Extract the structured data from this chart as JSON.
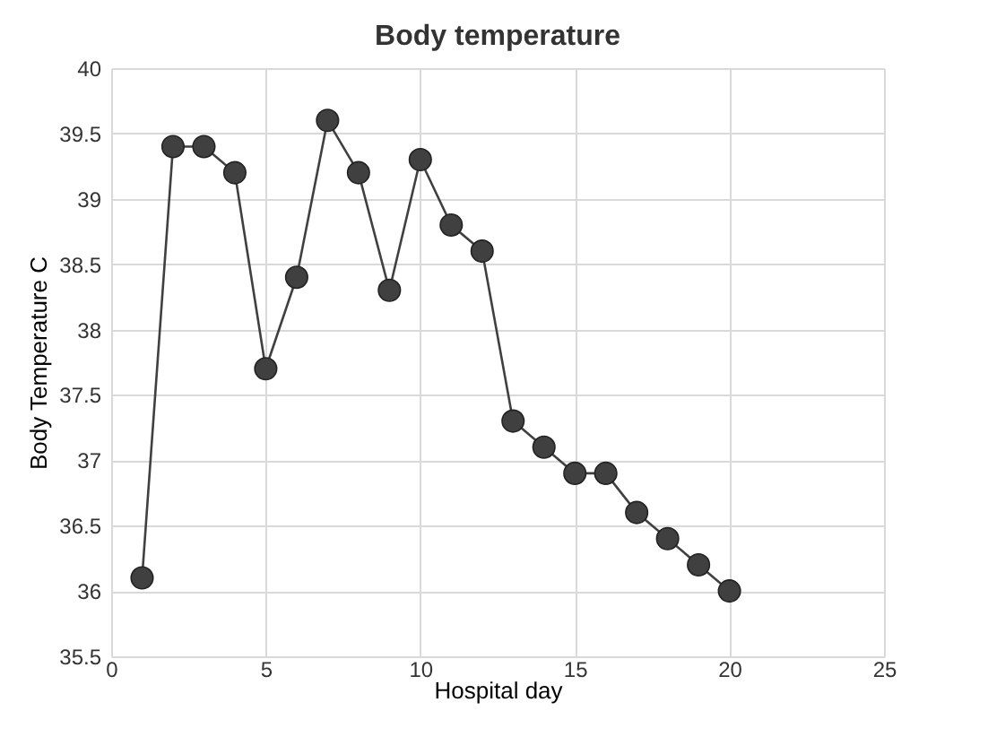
{
  "chart_data": {
    "type": "line",
    "title": "Body temperature",
    "xlabel": "Hospital  day",
    "ylabel": "Body Temperature  C",
    "x": [
      1,
      2,
      3,
      4,
      5,
      6,
      7,
      8,
      9,
      10,
      11,
      12,
      13,
      14,
      15,
      16,
      17,
      18,
      19,
      20
    ],
    "series": [
      {
        "color": "#404040",
        "values": [
          36.1,
          39.4,
          39.4,
          39.2,
          37.7,
          38.4,
          39.6,
          39.2,
          38.3,
          39.3,
          38.8,
          38.6,
          37.3,
          37.1,
          36.9,
          36.9,
          36.6,
          36.4,
          36.2,
          36.0
        ]
      }
    ],
    "xlim": [
      0,
      25
    ],
    "xticks": [
      0,
      5,
      10,
      15,
      20,
      25
    ],
    "ylim": [
      35.5,
      40
    ],
    "yticks": [
      35.5,
      36,
      36.5,
      37,
      37.5,
      38,
      38.5,
      39,
      39.5,
      40
    ],
    "grid": true,
    "marker": "circle",
    "line_style": "solid"
  }
}
